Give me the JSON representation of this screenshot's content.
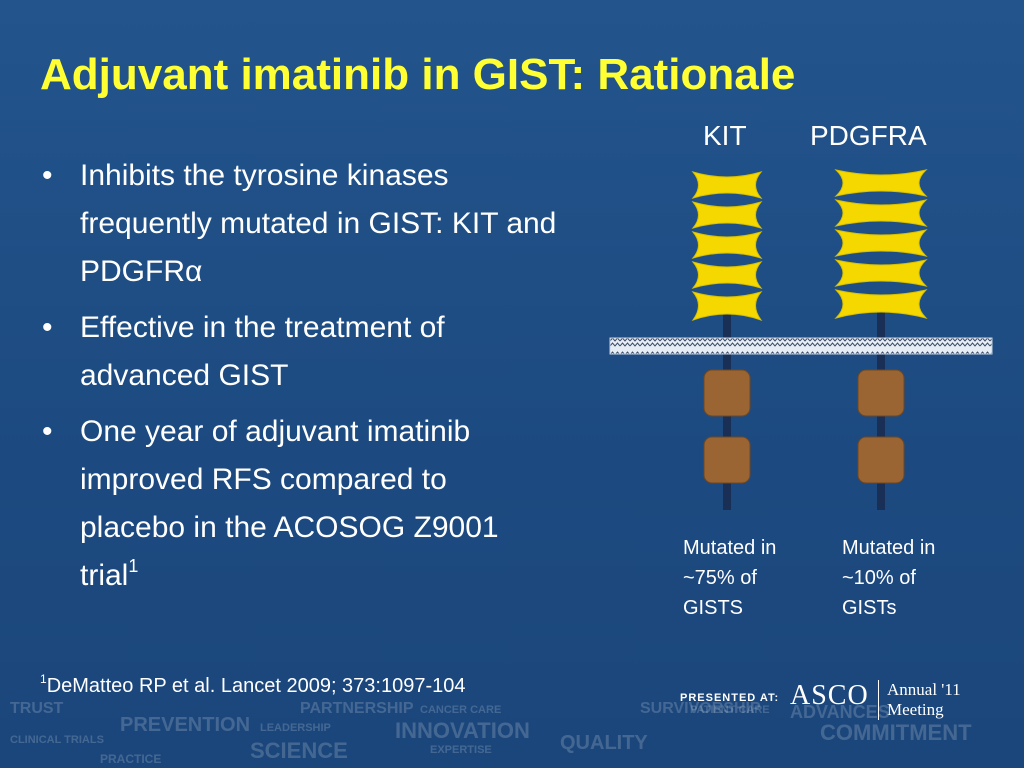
{
  "title": "Adjuvant imatinib in GIST: Rationale",
  "bullets": [
    {
      "text": "Inhibits the tyrosine kinases frequently mutated in GIST: KIT and PDGFR",
      "suffix": "α",
      "sup": ""
    },
    {
      "text": "Effective in the treatment of advanced GIST",
      "suffix": "",
      "sup": ""
    },
    {
      "text": "One year of adjuvant imatinib improved RFS compared to placebo in the ACOSOG Z9001 trial",
      "suffix": "",
      "sup": "1"
    }
  ],
  "bullet_glyph": "•",
  "footnote": {
    "sup": "1",
    "text": "DeMatteo RP et al. Lancet 2009; 373:1097-104"
  },
  "diagram": {
    "kit_label": "KIT",
    "pdgfra_label": "PDGFRA",
    "kit_mutation": [
      "Mutated in",
      "~75% of",
      "GISTS"
    ],
    "pdgfra_mutation": [
      "Mutated in",
      "~10% of",
      "GISTs"
    ],
    "colors": {
      "receptor": "#f5d800",
      "kinase": "#9a6533",
      "stalk": "#1a2f55",
      "membrane": "#e6edf5"
    }
  },
  "branding": {
    "presented_at": "PRESENTED AT:",
    "asco": "ASCO",
    "annual": "Annual '11",
    "meeting": "Meeting"
  },
  "background_words": [
    "PREVENTION",
    "TRUST",
    "INNOVATION",
    "QUALITY",
    "COMMITMENT",
    "SCIENCE",
    "CANCER CARE",
    "PATIENT CARE",
    "CLINICAL TRIALS",
    "PARTNERSHIP",
    "EXPERTISE",
    "LEADERSHIP",
    "ADVANCES",
    "SURVIVORSHIP",
    "PRACTICE"
  ]
}
